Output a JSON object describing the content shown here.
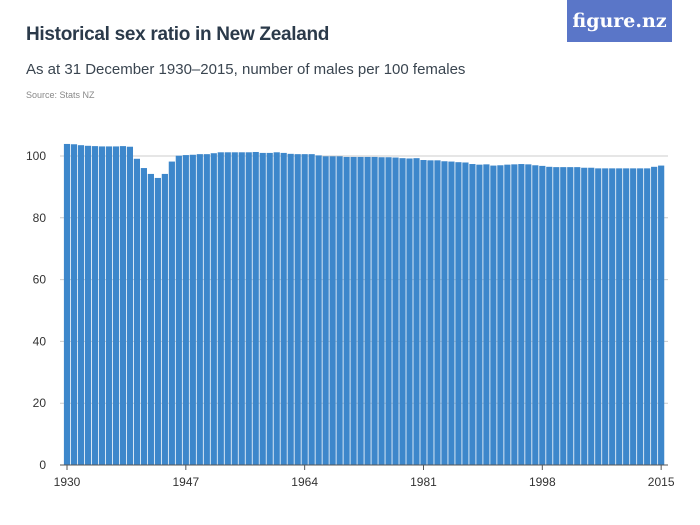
{
  "header": {
    "title": "Historical sex ratio in New Zealand",
    "subtitle": "As at 31 December 1930–2015, number of males per 100 females",
    "source": "Source: Stats NZ",
    "logo": "figure.nz"
  },
  "colors": {
    "bar": "#3d87cb",
    "grid": "#cccccc",
    "logo_bg": "#5a76c8"
  },
  "chart_data": {
    "type": "bar",
    "title": "Historical sex ratio in New Zealand",
    "xlabel": "",
    "ylabel": "Males per 100 females",
    "ylim": [
      0,
      100
    ],
    "yticks": [
      0,
      20,
      40,
      60,
      80,
      100
    ],
    "xticks": [
      1930,
      1947,
      1964,
      1981,
      1998,
      2015
    ],
    "x_start": 1930,
    "values": [
      103.9,
      103.8,
      103.5,
      103.3,
      103.2,
      103.1,
      103.1,
      103.1,
      103.2,
      103.0,
      99.1,
      96.1,
      94.2,
      92.9,
      94.2,
      98.2,
      100.1,
      100.3,
      100.4,
      100.6,
      100.6,
      100.9,
      101.2,
      101.2,
      101.2,
      101.2,
      101.2,
      101.3,
      101.0,
      101.0,
      101.2,
      101.0,
      100.7,
      100.6,
      100.6,
      100.6,
      100.2,
      99.9,
      99.9,
      99.9,
      99.7,
      99.7,
      99.7,
      99.7,
      99.7,
      99.6,
      99.6,
      99.5,
      99.3,
      99.2,
      99.3,
      98.7,
      98.6,
      98.6,
      98.3,
      98.2,
      98.0,
      97.9,
      97.4,
      97.2,
      97.3,
      96.9,
      97.0,
      97.2,
      97.3,
      97.4,
      97.3,
      97.0,
      96.8,
      96.5,
      96.4,
      96.4,
      96.4,
      96.4,
      96.2,
      96.2,
      96.0,
      96.0,
      96.0,
      96.0,
      96.0,
      96.0,
      96.0,
      96.0,
      96.5,
      96.9
    ]
  }
}
